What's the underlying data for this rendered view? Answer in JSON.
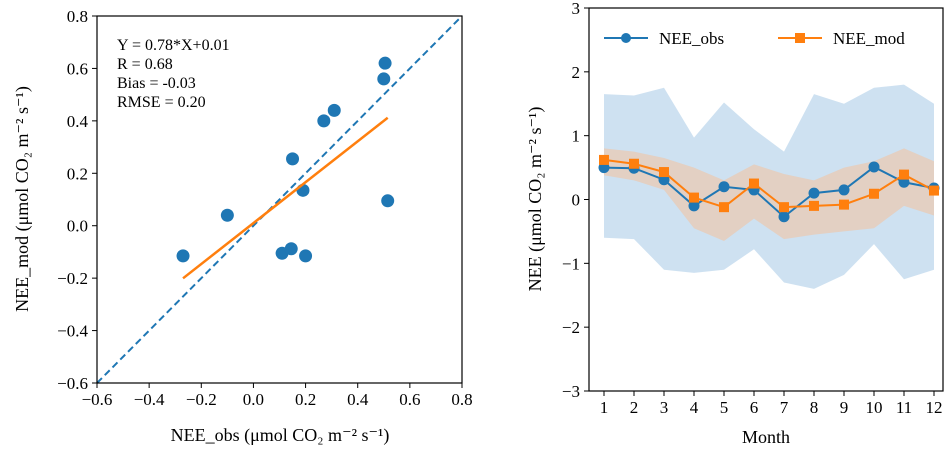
{
  "chart_data": [
    {
      "type": "scatter",
      "xlabel": "NEE_obs (μmol CO₂ m⁻² s⁻¹)",
      "ylabel": "NEE_mod (μmol CO₂ m⁻² s⁻¹)",
      "xlim": [
        -0.6,
        0.8
      ],
      "ylim": [
        -0.6,
        0.8
      ],
      "xticks": [
        "−0.6",
        "−0.4",
        "−0.2",
        "0.0",
        "0.2",
        "0.4",
        "0.6",
        "0.8"
      ],
      "yticks": [
        "−0.6",
        "−0.4",
        "−0.2",
        "0.0",
        "0.2",
        "0.4",
        "0.6",
        "0.8"
      ],
      "points": [
        {
          "x": -0.27,
          "y": -0.115
        },
        {
          "x": -0.1,
          "y": 0.04
        },
        {
          "x": 0.11,
          "y": -0.105
        },
        {
          "x": 0.145,
          "y": -0.088
        },
        {
          "x": 0.15,
          "y": 0.255
        },
        {
          "x": 0.19,
          "y": 0.135
        },
        {
          "x": 0.2,
          "y": -0.115
        },
        {
          "x": 0.27,
          "y": 0.4
        },
        {
          "x": 0.31,
          "y": 0.44
        },
        {
          "x": 0.5,
          "y": 0.56
        },
        {
          "x": 0.505,
          "y": 0.62
        },
        {
          "x": 0.515,
          "y": 0.095
        }
      ],
      "fit_line": {
        "slope": 0.78,
        "intercept": 0.01,
        "x_range": [
          -0.27,
          0.515
        ]
      },
      "one_to_one_line": true,
      "annotations": [
        "Y = 0.78*X+0.01",
        "R = 0.68",
        "Bias = -0.03",
        "RMSE = 0.20"
      ],
      "colors": {
        "points": "#1f77b4",
        "fit": "#ff7f0e",
        "one_to_one": "#1f77b4"
      }
    },
    {
      "type": "line",
      "xlabel": "Month",
      "ylabel": "NEE (μmol CO₂ m⁻² s⁻¹)",
      "xlim": [
        0.5,
        12.3
      ],
      "ylim": [
        -3,
        3
      ],
      "xticks": [
        "1",
        "2",
        "3",
        "4",
        "5",
        "6",
        "7",
        "8",
        "9",
        "10",
        "11",
        "12"
      ],
      "yticks": [
        "−3",
        "−2",
        "−1",
        "0",
        "1",
        "2",
        "3"
      ],
      "x": [
        1,
        2,
        3,
        4,
        5,
        6,
        7,
        8,
        9,
        10,
        11,
        12
      ],
      "series": [
        {
          "name": "NEE_obs",
          "color": "#1f77b4",
          "marker": "circle",
          "values": [
            0.5,
            0.49,
            0.31,
            -0.1,
            0.2,
            0.15,
            -0.27,
            0.1,
            0.15,
            0.51,
            0.27,
            0.18
          ],
          "band_upper": [
            1.65,
            1.63,
            1.75,
            0.97,
            1.52,
            1.1,
            0.75,
            1.65,
            1.5,
            1.75,
            1.8,
            1.5
          ],
          "band_lower": [
            -0.6,
            -0.62,
            -1.1,
            -1.15,
            -1.1,
            -0.78,
            -1.3,
            -1.4,
            -1.18,
            -0.7,
            -1.25,
            -1.1
          ]
        },
        {
          "name": "NEE_mod",
          "color": "#ff7f0e",
          "marker": "square",
          "values": [
            0.62,
            0.56,
            0.43,
            0.03,
            -0.12,
            0.25,
            -0.12,
            -0.1,
            -0.08,
            0.09,
            0.39,
            0.14
          ],
          "band_upper": [
            0.8,
            0.75,
            0.65,
            0.5,
            0.3,
            0.55,
            0.4,
            0.3,
            0.5,
            0.6,
            0.8,
            0.6
          ],
          "band_lower": [
            0.38,
            0.3,
            0.15,
            -0.45,
            -0.65,
            -0.3,
            -0.62,
            -0.55,
            -0.5,
            -0.45,
            -0.1,
            -0.25
          ]
        }
      ],
      "legend": "top",
      "band_colors": {
        "obs": "#c6dcef",
        "mod": "#e9c9b3"
      }
    }
  ]
}
